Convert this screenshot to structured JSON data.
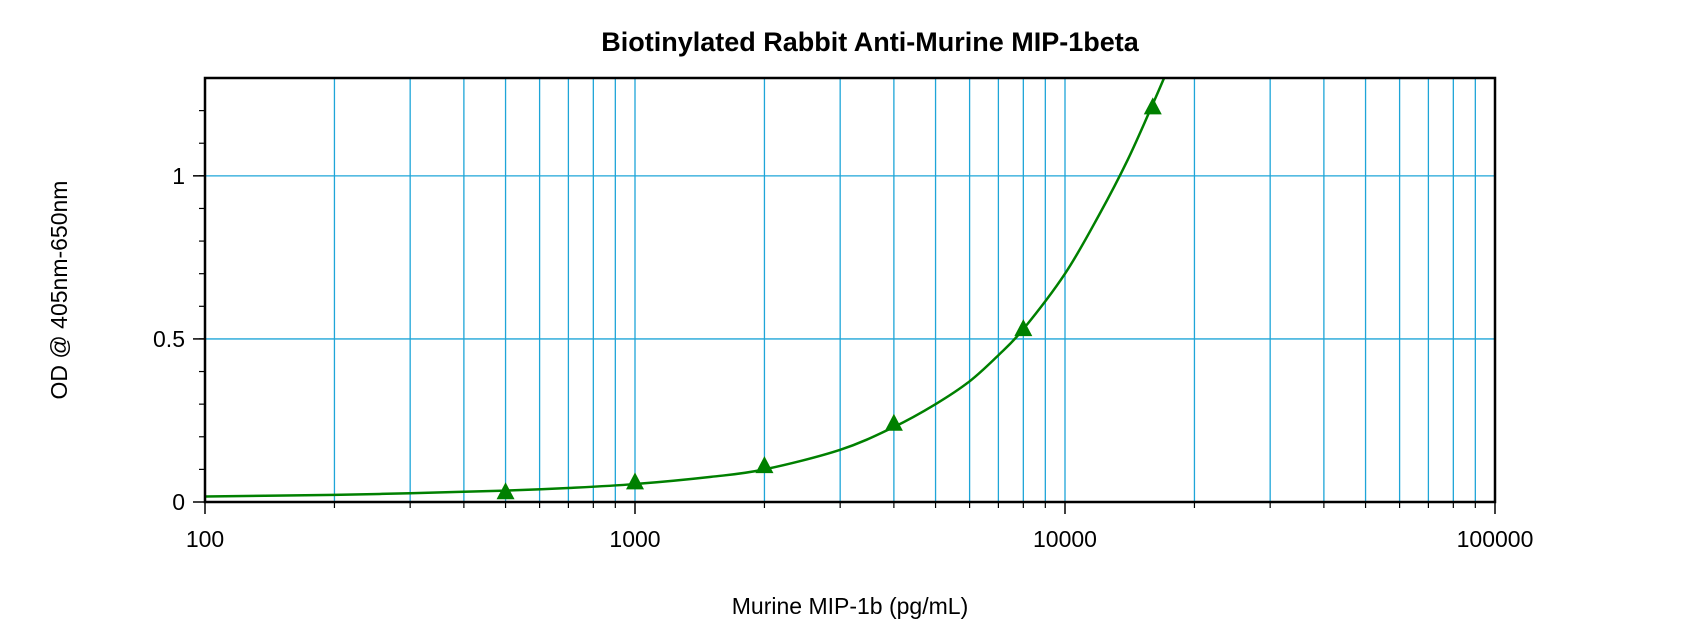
{
  "chart_data": {
    "type": "line",
    "title": "Biotinylated Rabbit Anti-Murine MIP-1beta",
    "xlabel": "Murine MIP-1b (pg/mL)",
    "ylabel": "OD @ 405nm-650nm",
    "x_scale": "log",
    "xlim": [
      100,
      100000
    ],
    "ylim": [
      0,
      1.3
    ],
    "x_ticks": [
      "100",
      "1000",
      "10000",
      "100000"
    ],
    "y_ticks": [
      "0",
      "0.5",
      "1"
    ],
    "grid": true,
    "series": [
      {
        "marker": "triangle",
        "color": "#008000",
        "x": [
          500,
          1000,
          2000,
          4000,
          8000,
          16000
        ],
        "y": [
          0.03,
          0.06,
          0.11,
          0.24,
          0.53,
          1.21
        ]
      }
    ],
    "fit_curve": {
      "color": "#008000",
      "x": [
        100,
        200,
        300,
        500,
        700,
        1000,
        1500,
        2000,
        3000,
        4000,
        5000,
        6000,
        7000,
        8000,
        10000,
        12000,
        14000,
        16000,
        17000
      ],
      "y": [
        0.017,
        0.022,
        0.027,
        0.035,
        0.043,
        0.055,
        0.077,
        0.1,
        0.16,
        0.23,
        0.3,
        0.37,
        0.45,
        0.53,
        0.7,
        0.88,
        1.05,
        1.22,
        1.3
      ]
    },
    "colors": {
      "grid": "#1ea5d8",
      "axis": "#000000",
      "series": "#008000"
    }
  }
}
